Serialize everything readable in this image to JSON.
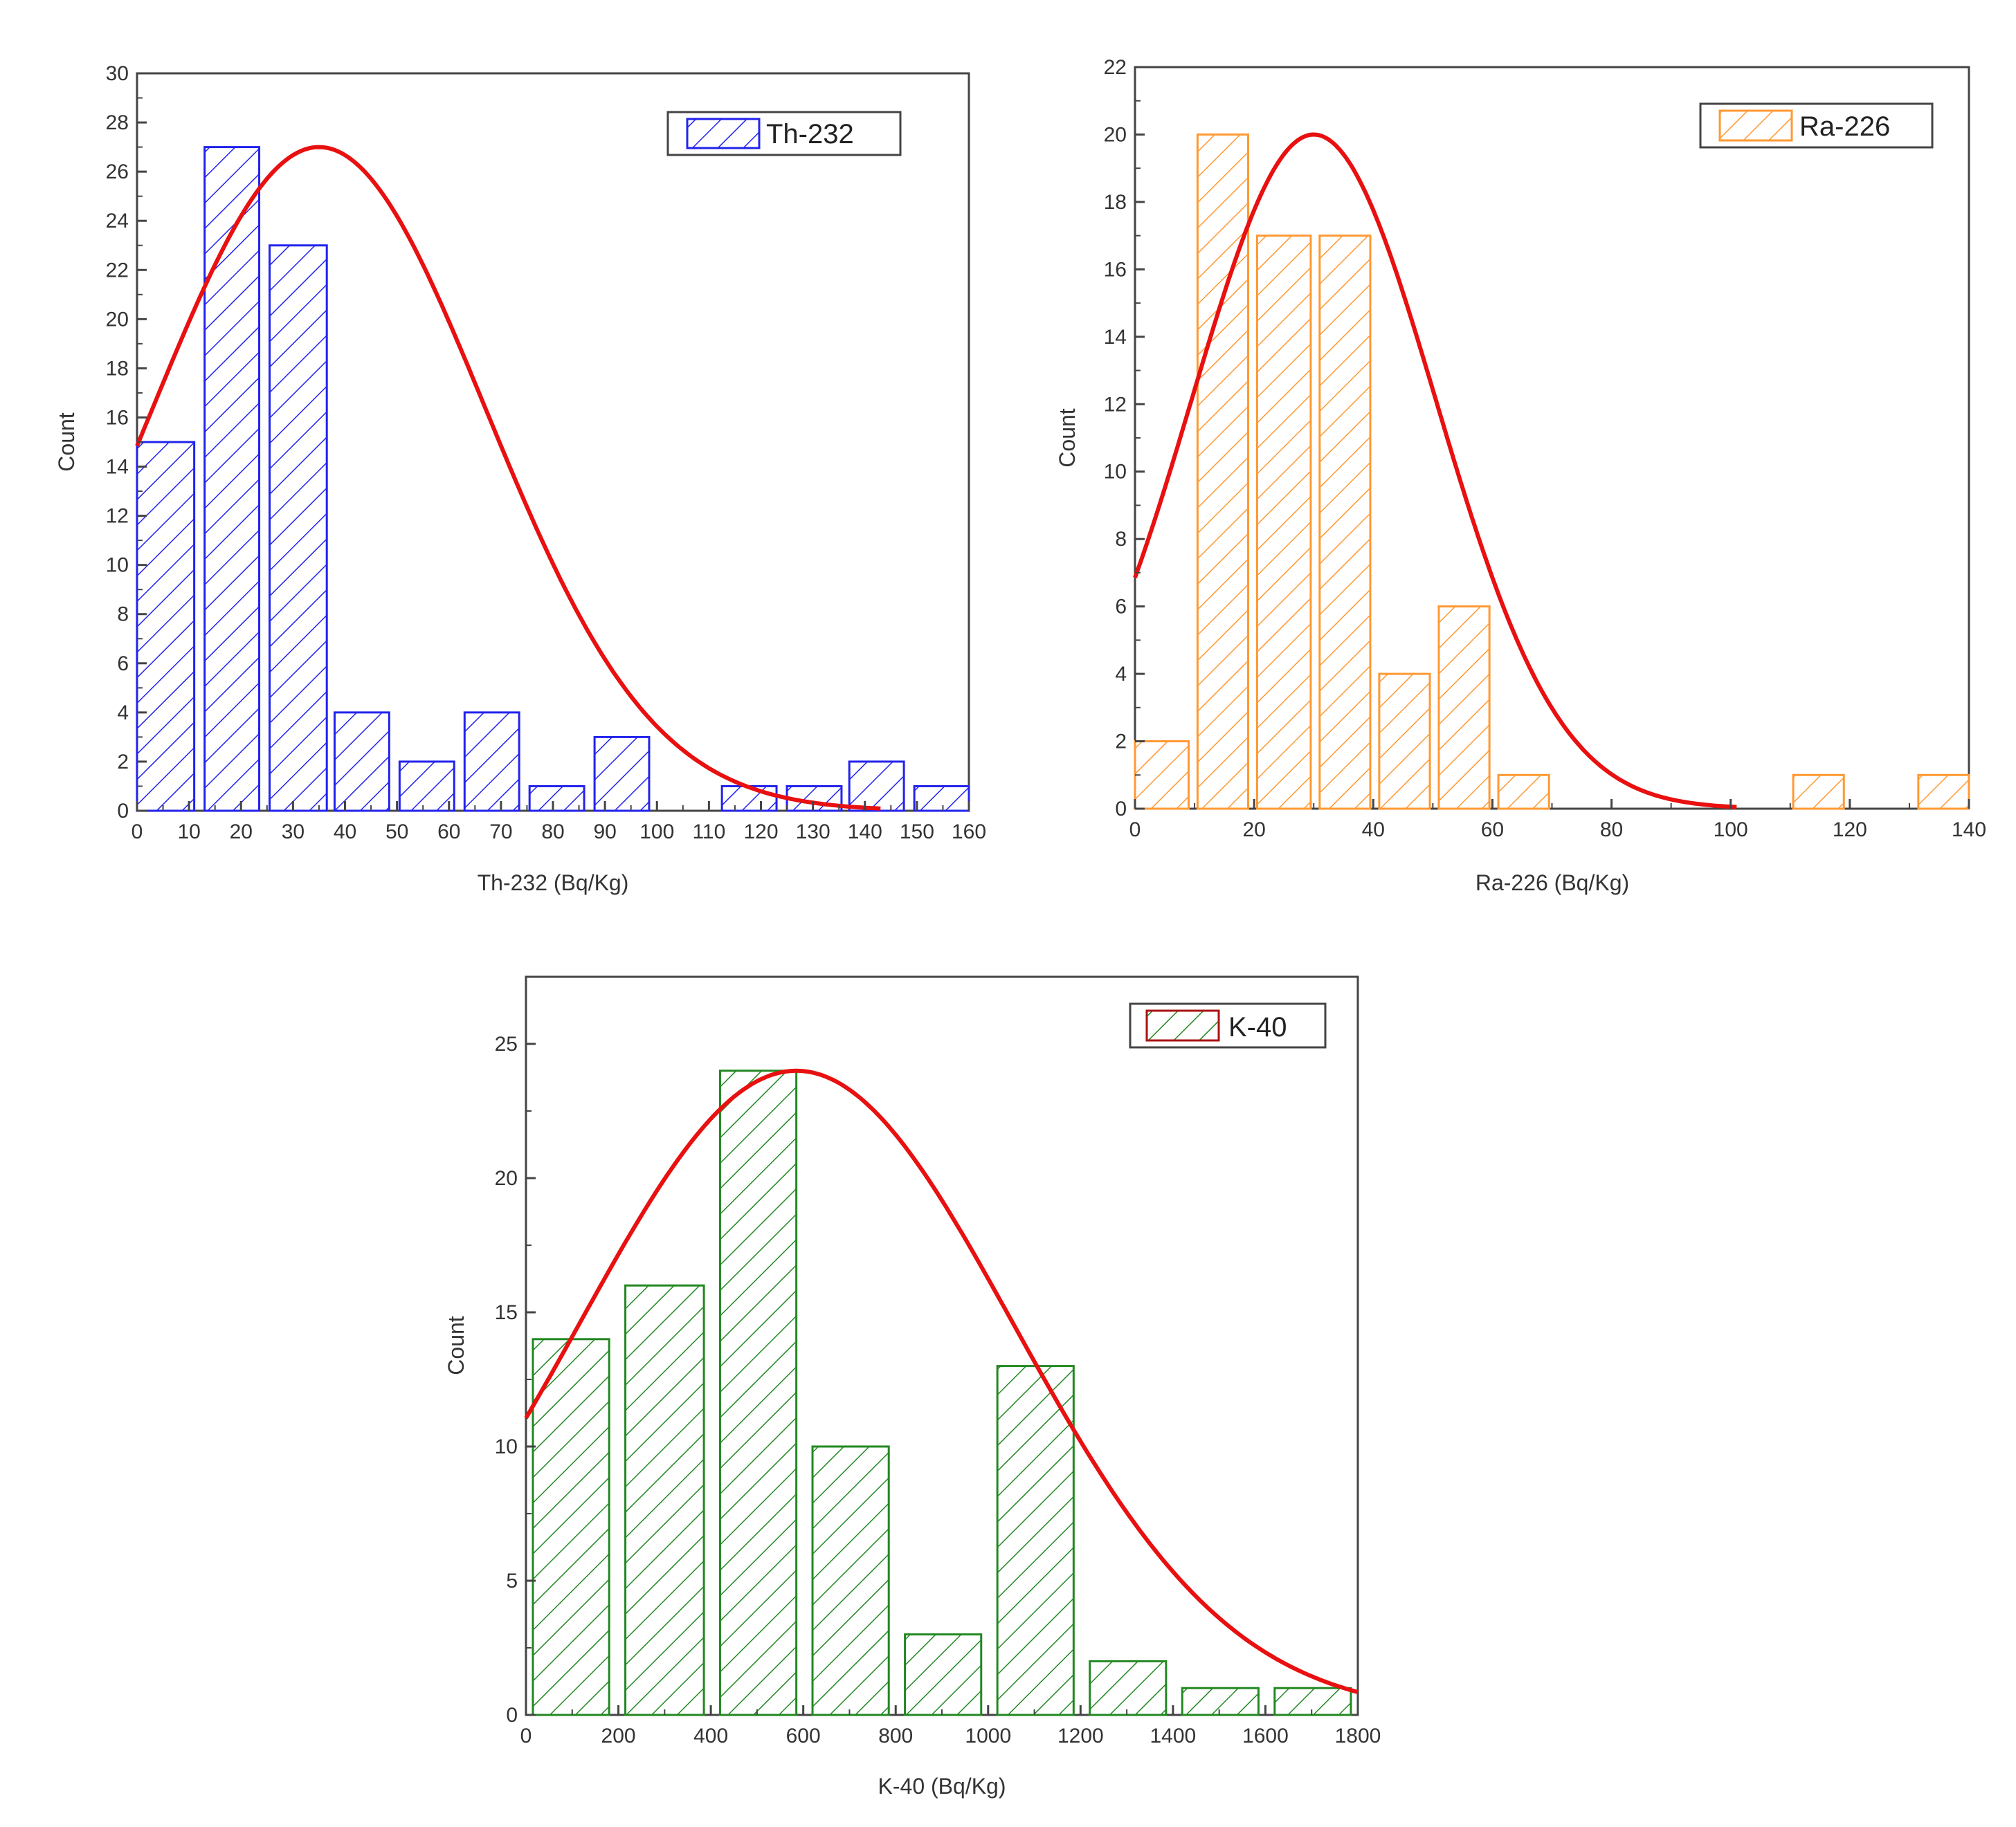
{
  "chart_data": [
    {
      "type": "bar",
      "id": "th232",
      "title": "",
      "legend": "Th-232",
      "legend_position": "top-right",
      "color": "#2222ee",
      "xlabel": "Th-232 (Bq/Kg)",
      "ylabel": "Count",
      "xlim": [
        0,
        160
      ],
      "ylim": [
        0,
        30
      ],
      "xticks": [
        0,
        10,
        20,
        30,
        40,
        50,
        60,
        70,
        80,
        90,
        100,
        110,
        120,
        130,
        140,
        150,
        160
      ],
      "xtick_labels": [
        "0",
        "10",
        "20",
        "30",
        "40",
        "50",
        "60",
        "70",
        "80",
        "90",
        "100",
        "110",
        "120",
        "130",
        "140",
        "150",
        "160"
      ],
      "yticks": [
        0,
        2,
        4,
        6,
        8,
        10,
        12,
        14,
        16,
        18,
        20,
        22,
        24,
        26,
        28,
        30
      ],
      "ytick_labels": [
        "0",
        "2",
        "4",
        "6",
        "8",
        "10",
        "12",
        "14",
        "16",
        "18",
        "20",
        "22",
        "24",
        "26",
        "28",
        "30"
      ],
      "bars": [
        {
          "x0": 0,
          "x1": 11,
          "count": 15
        },
        {
          "x0": 13,
          "x1": 23.5,
          "count": 27
        },
        {
          "x0": 25.5,
          "x1": 36.5,
          "count": 23
        },
        {
          "x0": 38,
          "x1": 48.5,
          "count": 4
        },
        {
          "x0": 50.5,
          "x1": 61,
          "count": 2
        },
        {
          "x0": 63,
          "x1": 73.5,
          "count": 4
        },
        {
          "x0": 75.5,
          "x1": 86,
          "count": 1
        },
        {
          "x0": 88,
          "x1": 98.5,
          "count": 3
        },
        {
          "x0": 112.5,
          "x1": 123,
          "count": 1
        },
        {
          "x0": 125,
          "x1": 135.5,
          "count": 1
        },
        {
          "x0": 137,
          "x1": 147.5,
          "count": 2
        },
        {
          "x0": 149.5,
          "x1": 160,
          "count": 1
        }
      ],
      "fit": {
        "peak": 27,
        "mean": 35,
        "sigma": 32,
        "x_end": 143
      }
    },
    {
      "type": "bar",
      "id": "ra226",
      "title": "",
      "legend": "Ra-226",
      "legend_position": "top-right",
      "color": "#ff9933",
      "xlabel": "Ra-226 (Bq/Kg)",
      "ylabel": "Count",
      "xlim": [
        0,
        140
      ],
      "ylim": [
        0,
        22
      ],
      "xticks": [
        0,
        20,
        40,
        60,
        80,
        100,
        120,
        140
      ],
      "xtick_labels": [
        "0",
        "20",
        "40",
        "60",
        "80",
        "100",
        "120",
        "140"
      ],
      "yticks": [
        0,
        2,
        4,
        6,
        8,
        10,
        12,
        14,
        16,
        18,
        20,
        22
      ],
      "ytick_labels": [
        "0",
        "2",
        "4",
        "6",
        "8",
        "10",
        "12",
        "14",
        "16",
        "18",
        "20",
        "22"
      ],
      "bars": [
        {
          "x0": 0,
          "x1": 9,
          "count": 2
        },
        {
          "x0": 10.5,
          "x1": 19,
          "count": 20
        },
        {
          "x0": 20.5,
          "x1": 29.5,
          "count": 17
        },
        {
          "x0": 31,
          "x1": 39.5,
          "count": 17
        },
        {
          "x0": 41,
          "x1": 49.5,
          "count": 4
        },
        {
          "x0": 51,
          "x1": 59.5,
          "count": 6
        },
        {
          "x0": 61,
          "x1": 69.5,
          "count": 1
        },
        {
          "x0": 110.5,
          "x1": 119,
          "count": 1
        },
        {
          "x0": 131.5,
          "x1": 140,
          "count": 1
        }
      ],
      "fit": {
        "peak": 20,
        "mean": 30,
        "sigma": 20.5,
        "x_end": 101
      }
    },
    {
      "type": "bar",
      "id": "k40",
      "title": "",
      "legend": "K-40",
      "legend_position": "top-right",
      "color": "#228822",
      "xlabel": "K-40 (Bq/Kg)",
      "ylabel": "Count",
      "xlim": [
        0,
        1800
      ],
      "ylim": [
        0,
        27.5
      ],
      "xticks": [
        0,
        200,
        400,
        600,
        800,
        1000,
        1200,
        1400,
        1600,
        1800
      ],
      "xtick_labels": [
        "0",
        "200",
        "400",
        "600",
        "800",
        "1000",
        "1200",
        "1400",
        "1600",
        "1800"
      ],
      "yticks": [
        0,
        5,
        10,
        15,
        20,
        25
      ],
      "ytick_labels": [
        "0",
        "5",
        "10",
        "15",
        "20",
        "25"
      ],
      "bars": [
        {
          "x0": 15,
          "x1": 180,
          "count": 14
        },
        {
          "x0": 215,
          "x1": 385,
          "count": 16
        },
        {
          "x0": 420,
          "x1": 585,
          "count": 24
        },
        {
          "x0": 620,
          "x1": 785,
          "count": 10
        },
        {
          "x0": 820,
          "x1": 985,
          "count": 3
        },
        {
          "x0": 1020,
          "x1": 1185,
          "count": 13
        },
        {
          "x0": 1220,
          "x1": 1385,
          "count": 2
        },
        {
          "x0": 1420,
          "x1": 1585,
          "count": 1
        },
        {
          "x0": 1620,
          "x1": 1785,
          "count": 1
        }
      ],
      "fit": {
        "peak": 24,
        "mean": 585,
        "sigma": 470,
        "x_end": 1800
      }
    }
  ],
  "colors": {
    "fit_curve": "#e81010",
    "axis": "#555555",
    "frame": "#444444",
    "k40_legend_border": "#aa1111"
  }
}
